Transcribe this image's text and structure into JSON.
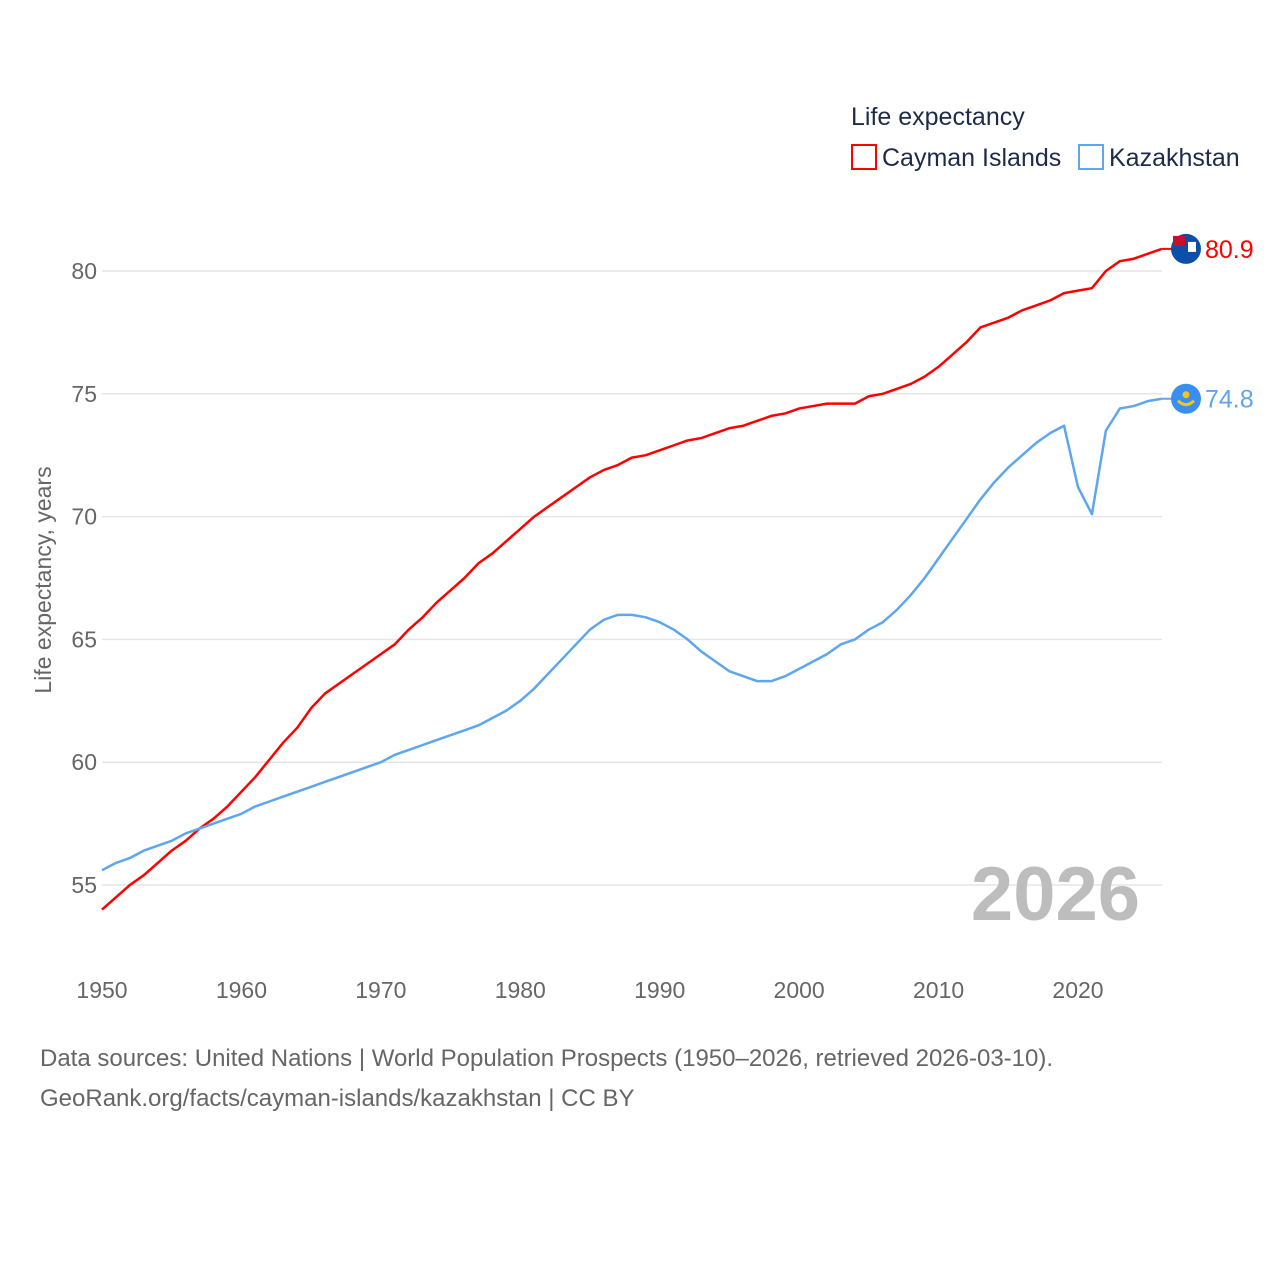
{
  "chart_data": {
    "type": "line",
    "title": "",
    "xlabel": "",
    "ylabel": "Life expectancy, years",
    "xlim": [
      1950,
      2026
    ],
    "ylim": [
      53.5,
      82
    ],
    "xticks": [
      1950,
      1960,
      1970,
      1980,
      1990,
      2000,
      2010,
      2020
    ],
    "yticks": [
      55,
      60,
      65,
      70,
      75,
      80
    ],
    "grid": true,
    "legend": {
      "title": "Life expectancy",
      "placement": "top-right"
    },
    "year_label": "2026",
    "x": [
      1950,
      1951,
      1952,
      1953,
      1954,
      1955,
      1956,
      1957,
      1958,
      1959,
      1960,
      1961,
      1962,
      1963,
      1964,
      1965,
      1966,
      1967,
      1968,
      1969,
      1970,
      1971,
      1972,
      1973,
      1974,
      1975,
      1976,
      1977,
      1978,
      1979,
      1980,
      1981,
      1982,
      1983,
      1984,
      1985,
      1986,
      1987,
      1988,
      1989,
      1990,
      1991,
      1992,
      1993,
      1994,
      1995,
      1996,
      1997,
      1998,
      1999,
      2000,
      2001,
      2002,
      2003,
      2004,
      2005,
      2006,
      2007,
      2008,
      2009,
      2010,
      2011,
      2012,
      2013,
      2014,
      2015,
      2016,
      2017,
      2018,
      2019,
      2020,
      2021,
      2022,
      2023,
      2024,
      2025,
      2026
    ],
    "series": [
      {
        "name": "Cayman Islands",
        "color": "#ff0000",
        "end_label": "80.9",
        "values": [
          54.0,
          54.5,
          55.0,
          55.4,
          55.9,
          56.4,
          56.8,
          57.3,
          57.7,
          58.2,
          58.8,
          59.4,
          60.1,
          60.8,
          61.4,
          62.2,
          62.8,
          63.2,
          63.6,
          64.0,
          64.4,
          64.8,
          65.4,
          65.9,
          66.5,
          67.0,
          67.5,
          68.1,
          68.5,
          69.0,
          69.5,
          70.0,
          70.4,
          70.8,
          71.2,
          71.6,
          71.9,
          72.1,
          72.4,
          72.5,
          72.7,
          72.9,
          73.1,
          73.2,
          73.4,
          73.6,
          73.7,
          73.9,
          74.1,
          74.2,
          74.4,
          74.5,
          74.6,
          74.6,
          74.6,
          74.9,
          75.0,
          75.2,
          75.4,
          75.7,
          76.1,
          76.6,
          77.1,
          77.7,
          77.9,
          78.1,
          78.4,
          78.6,
          78.8,
          79.1,
          79.2,
          79.3,
          80.0,
          80.4,
          80.5,
          80.7,
          80.9
        ]
      },
      {
        "name": "Kazakhstan",
        "color": "#5ea6ee",
        "end_label": "74.8",
        "values": [
          55.6,
          55.9,
          56.1,
          56.4,
          56.6,
          56.8,
          57.1,
          57.3,
          57.5,
          57.7,
          57.9,
          58.2,
          58.4,
          58.6,
          58.8,
          59.0,
          59.2,
          59.4,
          59.6,
          59.8,
          60.0,
          60.3,
          60.5,
          60.7,
          60.9,
          61.1,
          61.3,
          61.5,
          61.8,
          62.1,
          62.5,
          63.0,
          63.6,
          64.2,
          64.8,
          65.4,
          65.8,
          66.0,
          66.0,
          65.9,
          65.7,
          65.4,
          65.0,
          64.5,
          64.1,
          63.7,
          63.5,
          63.3,
          63.3,
          63.5,
          63.8,
          64.1,
          64.4,
          64.8,
          65.0,
          65.4,
          65.7,
          66.2,
          66.8,
          67.5,
          68.3,
          69.1,
          69.9,
          70.7,
          71.4,
          72.0,
          72.5,
          73.0,
          73.4,
          73.7,
          71.2,
          70.1,
          73.5,
          74.4,
          74.5,
          74.7,
          74.8
        ]
      }
    ]
  },
  "sources": {
    "line1": "Data sources: United Nations | World Population Prospects (1950–2026, retrieved 2026-03-10).",
    "line2": "GeoRank.org/facts/cayman-islands/kazakhstan | CC BY"
  }
}
